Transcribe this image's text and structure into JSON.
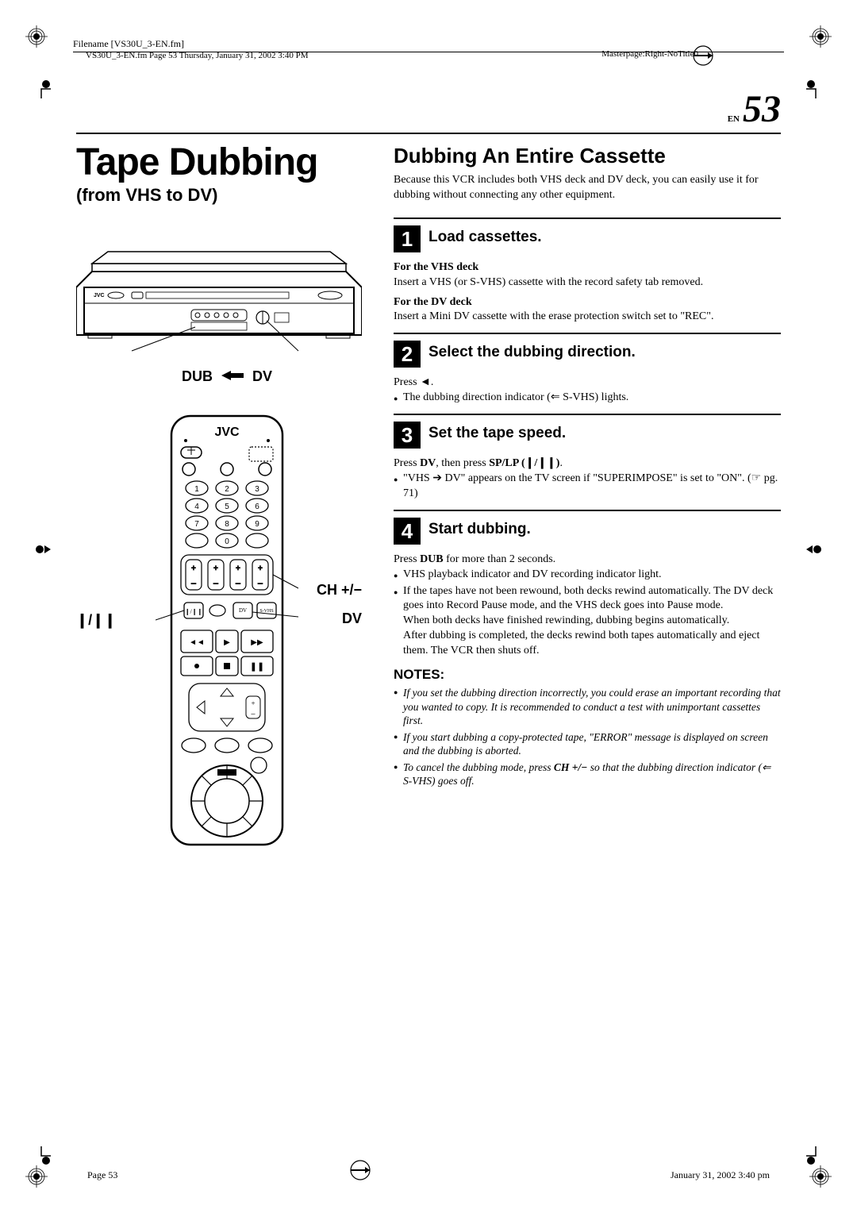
{
  "header": {
    "filename": "Filename [VS30U_3-EN.fm]",
    "pageinfo": "VS30U_3-EN.fm  Page 53  Thursday, January 31, 2002  3:40 PM",
    "masterpage": "Masterpage:Right-NoTitle0"
  },
  "page": {
    "en_label": "EN",
    "number": "53"
  },
  "left": {
    "title": "Tape Dubbing",
    "subtitle": "(from VHS to DV)",
    "vcr_label_dub": "DUB",
    "vcr_label_dv": "DV",
    "vcr_brand": "JVC",
    "remote_brand": "JVC",
    "remote_label_pause": "❙/❙❙",
    "remote_label_ch": "CH +/−",
    "remote_label_dv": "DV"
  },
  "right": {
    "section_title": "Dubbing An Entire Cassette",
    "intro": "Because this VCR includes both VHS deck and DV deck, you can easily use it for dubbing without connecting any other equipment.",
    "steps": [
      {
        "num": "1",
        "title": "Load cassettes.",
        "blocks": [
          {
            "bold": "For the VHS deck",
            "text": "Insert a VHS (or S-VHS) cassette with the record safety tab removed."
          },
          {
            "bold": "For the DV deck",
            "text": "Insert a Mini DV cassette with the erase protection switch set to \"REC\"."
          }
        ]
      },
      {
        "num": "2",
        "title": "Select the dubbing direction.",
        "text": "Press ◄.",
        "bullets": [
          "The dubbing direction indicator (⇐ S-VHS) lights."
        ]
      },
      {
        "num": "3",
        "title": "Set the tape speed.",
        "text_html": "Press <b>DV</b>, then press <b>SP/LP (❙/❙❙)</b>.",
        "bullets_html": [
          "\"VHS ➔ DV\" appears on the TV screen if \"SUPERIMPOSE\" is set to \"ON\". (☞ pg. 71)"
        ]
      },
      {
        "num": "4",
        "title": "Start dubbing.",
        "text_html": "Press <b>DUB</b> for more than 2 seconds.",
        "bullets": [
          "VHS playback indicator and DV recording indicator light.",
          "If the tapes have not been rewound, both decks rewind automatically. The DV deck goes into Record Pause mode, and the VHS deck goes into Pause mode.\nWhen both decks have finished rewinding, dubbing begins automatically.\nAfter dubbing is completed, the decks rewind both tapes automatically and eject them. The VCR then shuts off."
        ]
      }
    ],
    "notes_title": "NOTES:",
    "notes": [
      "If you set the dubbing direction incorrectly, you could erase an important recording that you wanted to copy. It is recommended to conduct a test with unimportant cassettes first.",
      "If you start dubbing a copy-protected tape, \"ERROR\" message is displayed on screen and the dubbing is aborted.",
      "To cancel the dubbing mode, press <b>CH +/−</b> so that the dubbing direction indicator (⇐ S-VHS) goes off."
    ]
  },
  "footer": {
    "left": "Page 53",
    "right": "January 31, 2002 3:40 pm"
  },
  "colors": {
    "text": "#000000",
    "bg": "#ffffff"
  }
}
